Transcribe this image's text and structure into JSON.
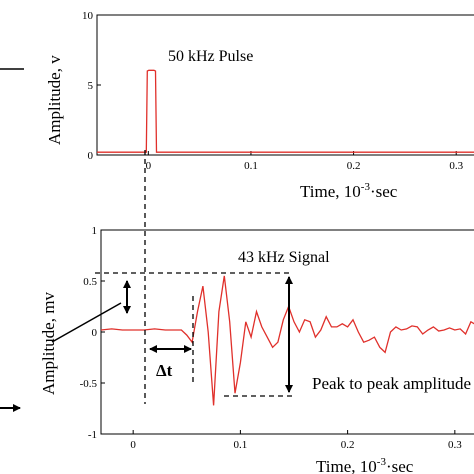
{
  "chart_data": [
    {
      "type": "line",
      "title": "50 kHz Pulse",
      "xlabel_main": "Time, 10",
      "xlabel_sup": "-3",
      "xlabel_tail": "·sec",
      "ylabel": "Amplitude, v",
      "xlim": [
        -0.05,
        0.33
      ],
      "ylim": [
        0,
        10
      ],
      "x_ticks": [
        {
          "value": 0,
          "label": "0"
        },
        {
          "value": 0.1,
          "label": "0.1"
        },
        {
          "value": 0.2,
          "label": "0.2"
        },
        {
          "value": 0.3,
          "label": "0.3"
        }
      ],
      "y_ticks": [
        {
          "value": 0,
          "label": "0"
        },
        {
          "value": 5,
          "label": "5"
        },
        {
          "value": 10,
          "label": "10"
        }
      ],
      "series": [
        {
          "color": "#e0302b",
          "x": [
            -0.05,
            -0.002,
            -0.001,
            0.0005,
            0.0055,
            0.007,
            0.008,
            0.33
          ],
          "y": [
            0.2,
            0.2,
            6.0,
            6.05,
            6.05,
            6.0,
            0.2,
            0.2
          ]
        }
      ]
    },
    {
      "type": "line",
      "title": "43 kHz Signal",
      "xlabel_main": "Time, 10",
      "xlabel_sup": "-3",
      "xlabel_tail": "·sec",
      "ylabel": "Amplitude, mv",
      "xlim": [
        -0.03,
        0.33
      ],
      "ylim": [
        -1,
        1
      ],
      "x_ticks": [
        {
          "value": 0,
          "label": "0"
        },
        {
          "value": 0.1,
          "label": "0.1"
        },
        {
          "value": 0.2,
          "label": "0.2"
        },
        {
          "value": 0.3,
          "label": "0.3"
        }
      ],
      "y_ticks": [
        {
          "value": 1,
          "label": "1"
        },
        {
          "value": 0.5,
          "label": "0.5"
        },
        {
          "value": 0,
          "label": "0"
        },
        {
          "value": -0.5,
          "label": "-0.5"
        },
        {
          "value": -1,
          "label": "-1"
        }
      ],
      "annotations": {
        "delta_t": "Δt",
        "peak_to_peak": "Peak to peak amplitude"
      },
      "series": [
        {
          "color": "#e0302b",
          "x": [
            -0.03,
            -0.02,
            -0.01,
            0,
            0.01,
            0.02,
            0.03,
            0.04,
            0.045,
            0.05,
            0.055,
            0.06,
            0.065,
            0.07,
            0.075,
            0.08,
            0.085,
            0.09,
            0.095,
            0.1,
            0.105,
            0.11,
            0.115,
            0.12,
            0.125,
            0.13,
            0.135,
            0.14,
            0.145,
            0.15,
            0.155,
            0.16,
            0.165,
            0.17,
            0.175,
            0.18,
            0.185,
            0.19,
            0.195,
            0.2,
            0.205,
            0.21,
            0.215,
            0.22,
            0.225,
            0.23,
            0.235,
            0.24,
            0.245,
            0.25,
            0.255,
            0.26,
            0.265,
            0.27,
            0.275,
            0.28,
            0.285,
            0.29,
            0.295,
            0.3,
            0.305,
            0.31,
            0.315,
            0.32,
            0.325,
            0.33
          ],
          "y": [
            0.02,
            0.03,
            0.02,
            0.02,
            0.02,
            0.03,
            0.02,
            0.02,
            0.02,
            -0.03,
            -0.1,
            0.2,
            0.45,
            0.0,
            -0.72,
            0.2,
            0.55,
            0.1,
            -0.6,
            -0.3,
            0.1,
            -0.05,
            0.2,
            0.05,
            -0.05,
            -0.15,
            -0.1,
            0.12,
            0.25,
            0.1,
            0.0,
            0.12,
            0.1,
            -0.05,
            0.02,
            0.15,
            0.05,
            0.05,
            0.08,
            0.05,
            0.12,
            0.0,
            -0.1,
            -0.08,
            -0.05,
            -0.15,
            -0.2,
            0.0,
            0.05,
            0.02,
            0.03,
            0.06,
            0.05,
            -0.02,
            0.02,
            0.05,
            0.01,
            0.02,
            0.04,
            0.02,
            0.03,
            -0.02,
            0.1,
            0.07,
            0.02,
            0.0
          ]
        }
      ]
    }
  ]
}
